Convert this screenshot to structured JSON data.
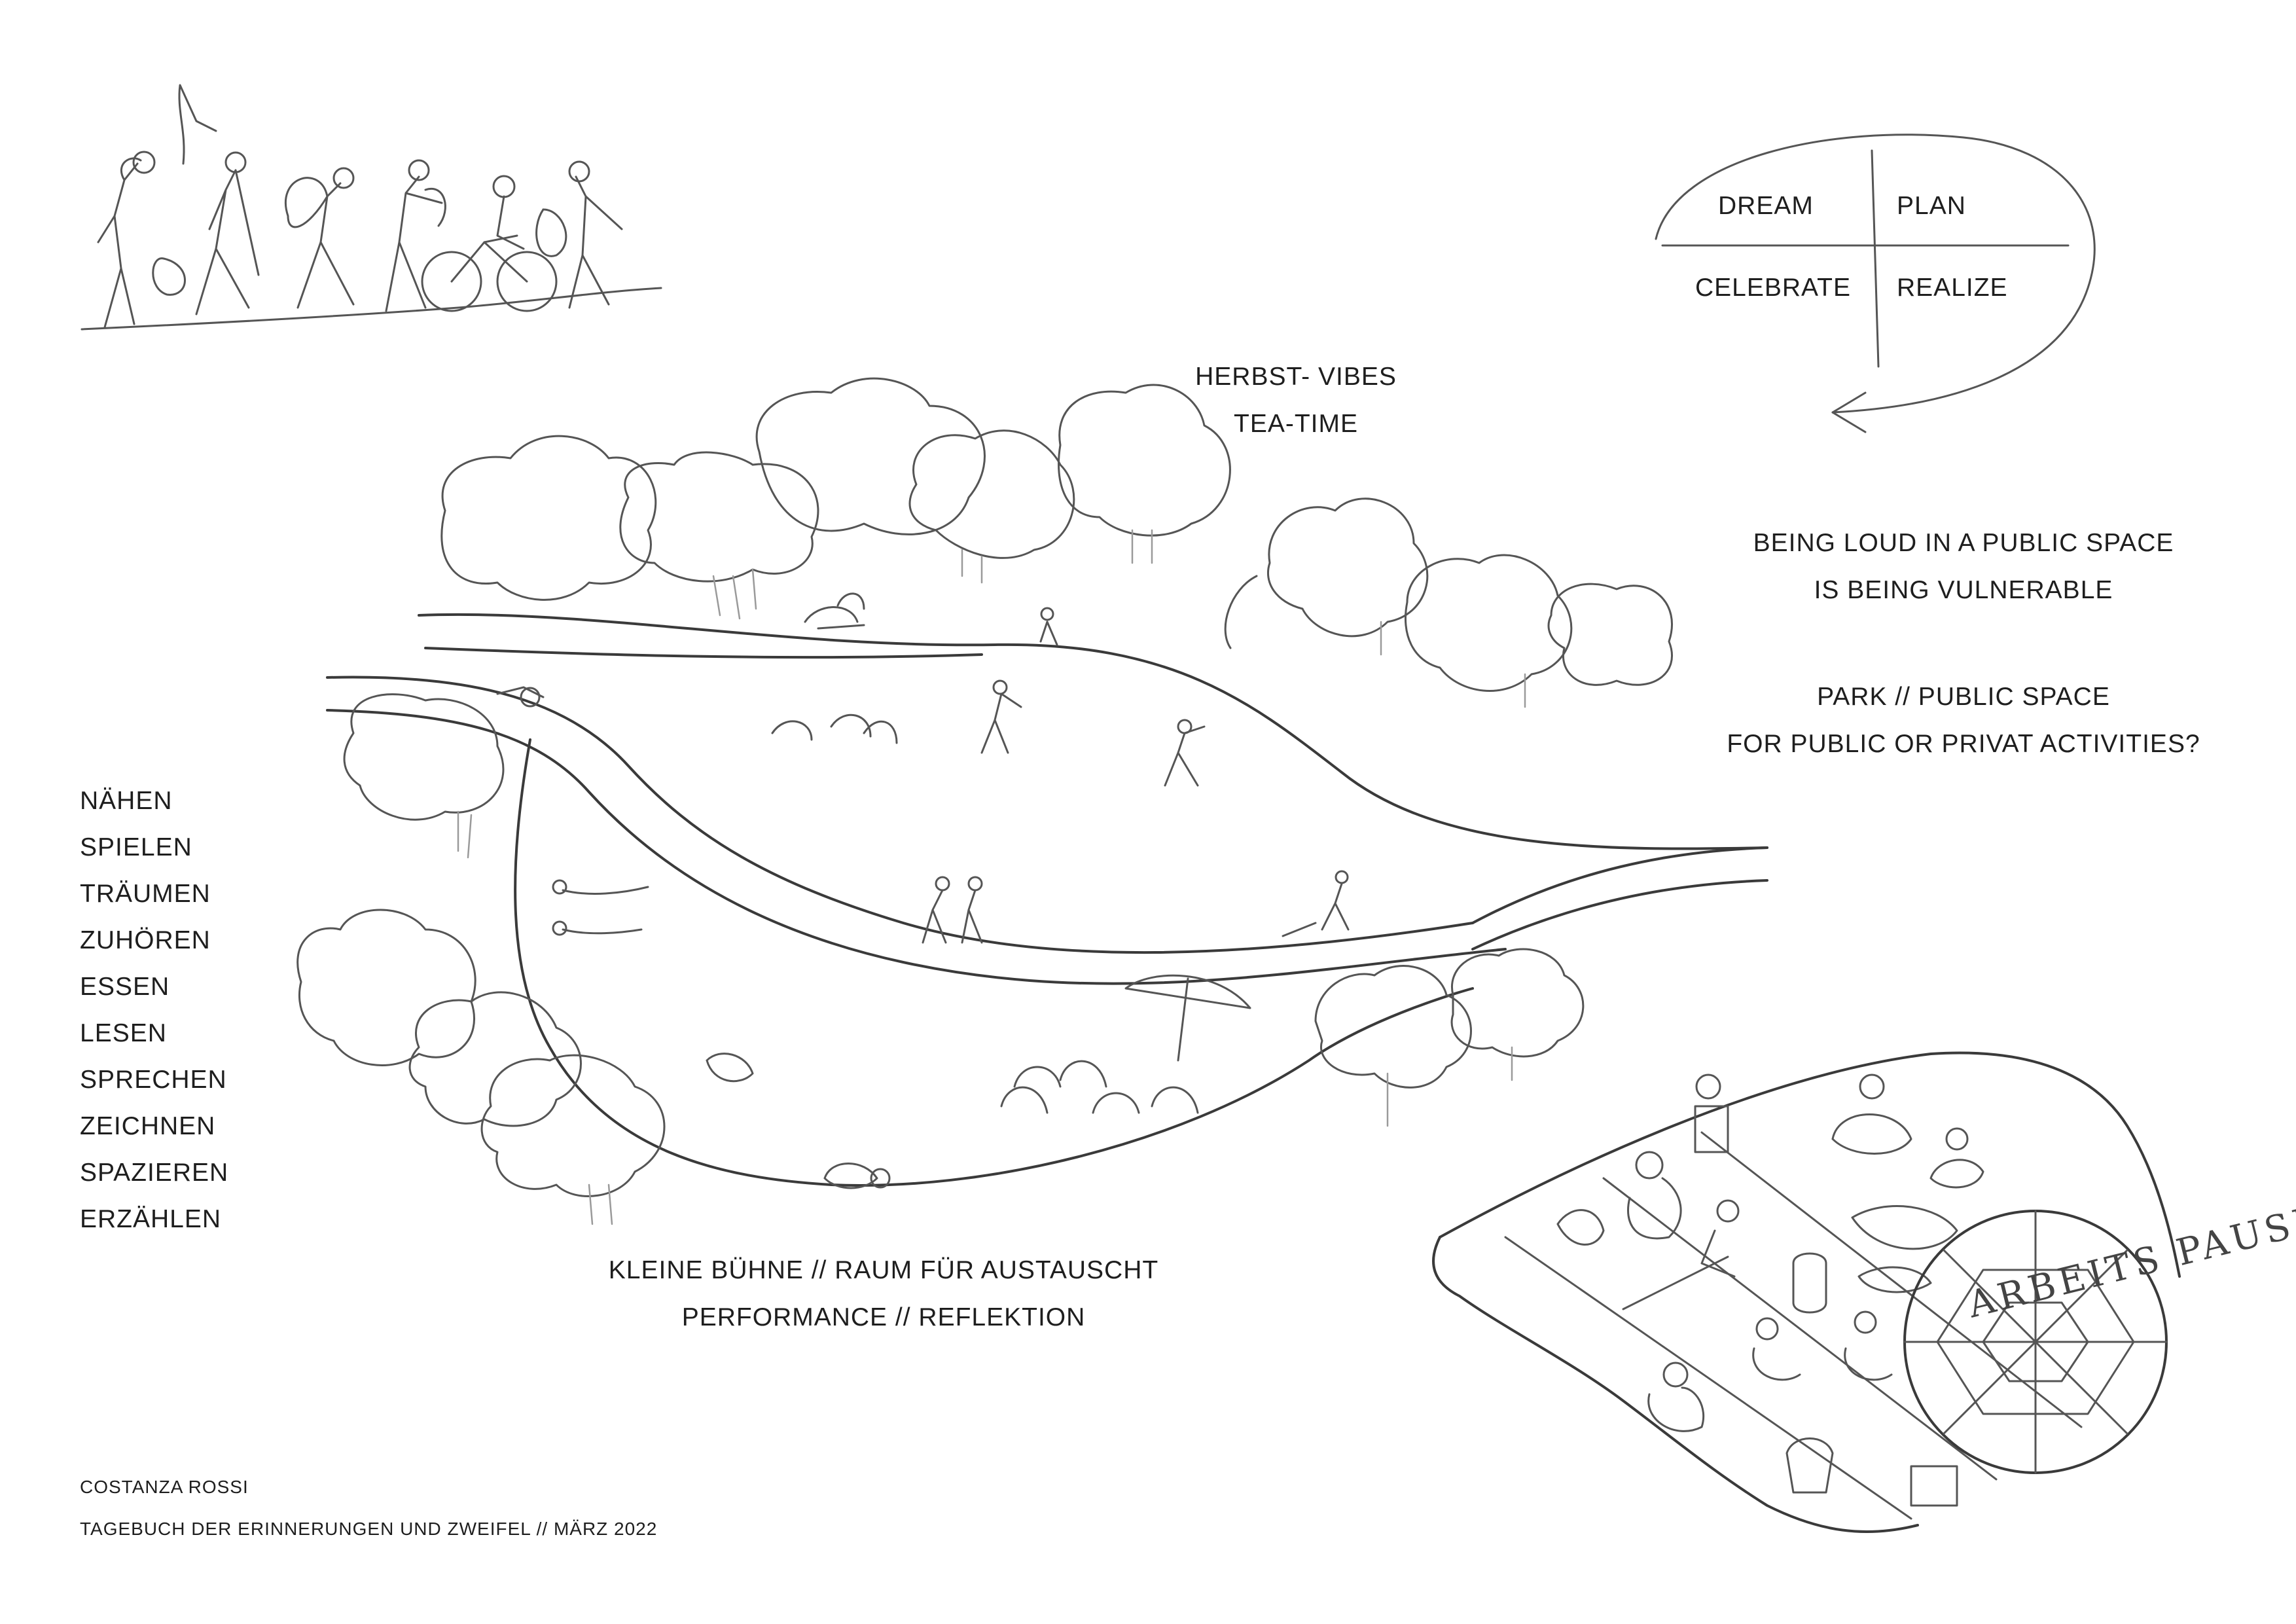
{
  "cycle": {
    "quadrants": [
      "DREAM",
      "PLAN",
      "CELEBRATE",
      "REALIZE"
    ]
  },
  "park_labels": {
    "herbst_line1": "HERBST- VIBES",
    "herbst_line2": "TEA-TIME"
  },
  "statements": {
    "vulnerable_line1": "BEING LOUD IN A PUBLIC SPACE",
    "vulnerable_line2": "IS BEING VULNERABLE",
    "park_line1": "PARK // PUBLIC SPACE",
    "park_line2": "FOR PUBLIC OR PRIVAT ACTIVITIES?"
  },
  "activities": [
    "NÄHEN",
    "SPIELEN",
    "TRÄUMEN",
    "ZUHÖREN",
    "ESSEN",
    "LESEN",
    "SPRECHEN",
    "ZEICHNEN",
    "SPAZIEREN",
    "ERZÄHLEN"
  ],
  "stage": {
    "line1": "KLEINE BÜHNE // RAUM FÜR AUSTAUSCHT",
    "line2": "PERFORMANCE // REFLEKTION"
  },
  "footer": {
    "author": "COSTANZA ROSSI",
    "subtitle": "TAGEBUCH DER ERINNERUNGEN UND ZWEIFEL // MÄRZ 2022"
  },
  "blanket_lettering": "ARBEITS PAUSE"
}
